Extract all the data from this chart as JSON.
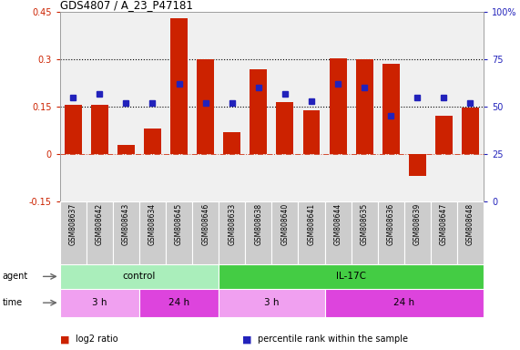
{
  "title": "GDS4807 / A_23_P47181",
  "samples": [
    "GSM808637",
    "GSM808642",
    "GSM808643",
    "GSM808634",
    "GSM808645",
    "GSM808646",
    "GSM808633",
    "GSM808638",
    "GSM808640",
    "GSM808641",
    "GSM808644",
    "GSM808635",
    "GSM808636",
    "GSM808639",
    "GSM808647",
    "GSM808648"
  ],
  "log2_ratio": [
    0.155,
    0.155,
    0.03,
    0.08,
    0.43,
    0.3,
    0.07,
    0.27,
    0.165,
    0.14,
    0.305,
    0.3,
    0.285,
    -0.07,
    0.12,
    0.148
  ],
  "percentile": [
    55,
    57,
    52,
    52,
    62,
    52,
    52,
    60,
    57,
    53,
    62,
    60,
    45,
    55,
    55,
    52
  ],
  "bar_color": "#cc2200",
  "dot_color": "#2222bb",
  "ylim_left": [
    -0.15,
    0.45
  ],
  "ylim_right": [
    0,
    100
  ],
  "yticks_left": [
    -0.15,
    0.0,
    0.15,
    0.3,
    0.45
  ],
  "yticks_right": [
    0,
    25,
    50,
    75,
    100
  ],
  "yticklabels_left": [
    "-0.15",
    "0",
    "0.15",
    "0.3",
    "0.45"
  ],
  "yticklabels_right": [
    "0",
    "25",
    "50",
    "75",
    "100%"
  ],
  "hlines": [
    0.15,
    0.3
  ],
  "agent_groups": [
    {
      "label": "control",
      "start": 0,
      "end": 6,
      "color": "#aaeebb"
    },
    {
      "label": "IL-17C",
      "start": 6,
      "end": 16,
      "color": "#44cc44"
    }
  ],
  "time_groups": [
    {
      "label": "3 h",
      "start": 0,
      "end": 3,
      "color": "#f0a0f0"
    },
    {
      "label": "24 h",
      "start": 3,
      "end": 6,
      "color": "#dd44dd"
    },
    {
      "label": "3 h",
      "start": 6,
      "end": 10,
      "color": "#f0a0f0"
    },
    {
      "label": "24 h",
      "start": 10,
      "end": 16,
      "color": "#dd44dd"
    }
  ],
  "legend_items": [
    {
      "color": "#cc2200",
      "label": "log2 ratio",
      "marker": "s"
    },
    {
      "color": "#2222bb",
      "label": "percentile rank within the sample",
      "marker": "s"
    }
  ],
  "bg_color": "#ffffff",
  "plot_bg_color": "#f0f0f0",
  "label_bg_color": "#cccccc"
}
